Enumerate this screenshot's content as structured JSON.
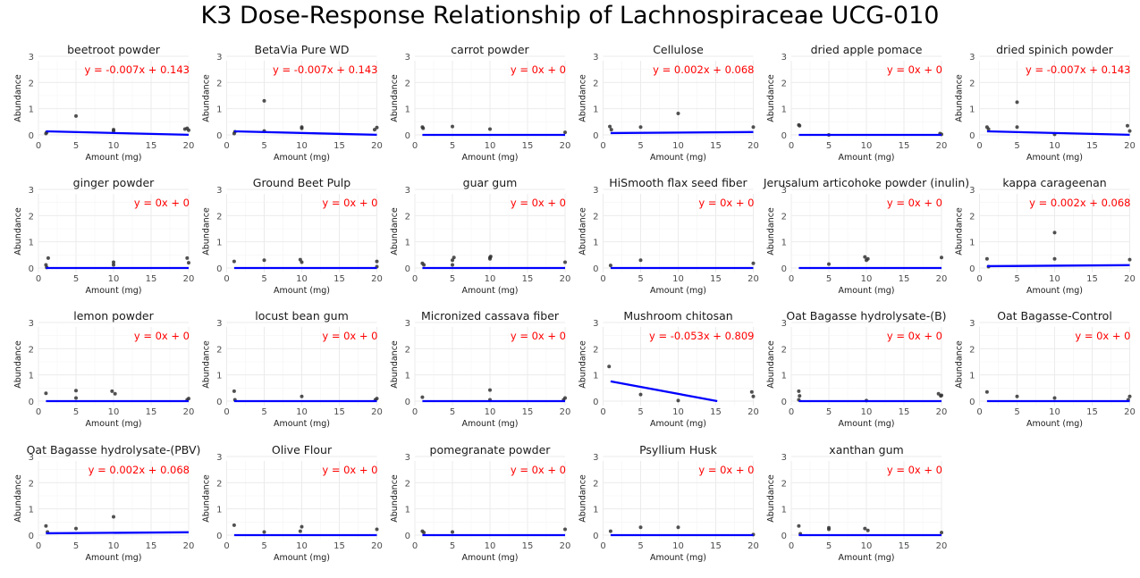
{
  "chart_data": {
    "type": "scatter",
    "title": "K3 Dose-Response Relationship of Lachnospiraceae UCG-010",
    "xlabel": "Amount (mg)",
    "ylabel": "Abundance",
    "xlim": [
      0,
      20
    ],
    "ylim": [
      0,
      3
    ],
    "xticks": [
      0,
      5,
      10,
      15,
      20
    ],
    "yticks": [
      0,
      1,
      2,
      3
    ],
    "grid": true,
    "point_color": "#333333",
    "fit_line_color": "#0000ff",
    "equation_color": "#ff0000",
    "facets": [
      {
        "name": "beetroot powder",
        "equation": "y = -0.007x + 0.143",
        "fit": [
          [
            1,
            0.136
          ],
          [
            20,
            0.003
          ]
        ],
        "points": [
          [
            1,
            0.05
          ],
          [
            1.1,
            0.1
          ],
          [
            5,
            0.72
          ],
          [
            10,
            0.15
          ],
          [
            10,
            0.2
          ],
          [
            19.5,
            0.22
          ],
          [
            19.8,
            0.25
          ],
          [
            20,
            0.18
          ]
        ]
      },
      {
        "name": "BetaVia Pure WD",
        "equation": "y = -0.007x + 0.143",
        "fit": [
          [
            1,
            0.136
          ],
          [
            20,
            0.003
          ]
        ],
        "points": [
          [
            1,
            0.05
          ],
          [
            1.1,
            0.12
          ],
          [
            5,
            1.3
          ],
          [
            5,
            0.15
          ],
          [
            10,
            0.3
          ],
          [
            10,
            0.25
          ],
          [
            19.7,
            0.2
          ],
          [
            20,
            0.28
          ]
        ]
      },
      {
        "name": "carrot powder",
        "equation": "y = 0x + 0",
        "fit": [
          [
            1,
            0
          ],
          [
            20,
            0
          ]
        ],
        "points": [
          [
            1,
            0.3
          ],
          [
            1.1,
            0.25
          ],
          [
            5,
            0.32
          ],
          [
            10,
            0.22
          ],
          [
            20,
            0.1
          ]
        ]
      },
      {
        "name": "Cellulose",
        "equation": "y = 0.002x + 0.068",
        "fit": [
          [
            1,
            0.07
          ],
          [
            20,
            0.108
          ]
        ],
        "points": [
          [
            0.9,
            0.32
          ],
          [
            1.1,
            0.2
          ],
          [
            5,
            0.3
          ],
          [
            10,
            0.82
          ],
          [
            20,
            0.3
          ]
        ]
      },
      {
        "name": "dried apple pomace",
        "equation": "y = 0x + 0",
        "fit": [
          [
            1,
            0
          ],
          [
            20,
            0
          ]
        ],
        "points": [
          [
            1,
            0.38
          ],
          [
            1.1,
            0.35
          ],
          [
            5,
            0
          ],
          [
            19.8,
            0.05
          ],
          [
            20,
            0.02
          ]
        ]
      },
      {
        "name": "dried spinich powder",
        "equation": "y = -0.007x + 0.143",
        "fit": [
          [
            1,
            0.136
          ],
          [
            20,
            0.003
          ]
        ],
        "points": [
          [
            1,
            0.3
          ],
          [
            1.2,
            0.22
          ],
          [
            5,
            1.25
          ],
          [
            5,
            0.3
          ],
          [
            10,
            0.02
          ],
          [
            19.7,
            0.35
          ],
          [
            20,
            0.15
          ]
        ]
      },
      {
        "name": "ginger powder",
        "equation": "y = 0x + 0",
        "fit": [
          [
            1,
            0
          ],
          [
            20,
            0
          ]
        ],
        "points": [
          [
            1,
            0.12
          ],
          [
            1.1,
            0.02
          ],
          [
            1.3,
            0.38
          ],
          [
            10,
            0.22
          ],
          [
            10,
            0.12
          ],
          [
            19.8,
            0.38
          ],
          [
            20,
            0.2
          ]
        ]
      },
      {
        "name": "Ground Beet Pulp",
        "equation": "y = 0x + 0",
        "fit": [
          [
            1,
            0
          ],
          [
            20,
            0
          ]
        ],
        "points": [
          [
            1,
            0.25
          ],
          [
            5,
            0.3
          ],
          [
            9.8,
            0.32
          ],
          [
            10,
            0.22
          ],
          [
            20,
            0.25
          ],
          [
            20,
            0.05
          ]
        ]
      },
      {
        "name": "guar gum",
        "equation": "y = 0x + 0",
        "fit": [
          [
            1,
            0
          ],
          [
            20,
            0
          ]
        ],
        "points": [
          [
            1,
            0.18
          ],
          [
            1.2,
            0.12
          ],
          [
            5,
            0.3
          ],
          [
            5.2,
            0.4
          ],
          [
            5,
            0.12
          ],
          [
            10,
            0.4
          ],
          [
            10,
            0.35
          ],
          [
            10.1,
            0.44
          ],
          [
            20,
            0.22
          ]
        ]
      },
      {
        "name": "HiSmooth flax seed fiber",
        "equation": "y = 0x + 0",
        "fit": [
          [
            1,
            0
          ],
          [
            20,
            0
          ]
        ],
        "points": [
          [
            1,
            0.1
          ],
          [
            5,
            0.3
          ],
          [
            20,
            0.18
          ]
        ]
      },
      {
        "name": "Jerusalum articohoke powder (inulin)",
        "equation": "y = 0x + 0",
        "fit": [
          [
            1,
            0
          ],
          [
            20,
            0
          ]
        ],
        "points": [
          [
            5,
            0.15
          ],
          [
            9.8,
            0.42
          ],
          [
            10,
            0.3
          ],
          [
            10.2,
            0.35
          ],
          [
            20,
            0.4
          ]
        ]
      },
      {
        "name": "kappa carageenan",
        "equation": "y = 0.002x + 0.068",
        "fit": [
          [
            1,
            0.07
          ],
          [
            20,
            0.108
          ]
        ],
        "points": [
          [
            1,
            0.35
          ],
          [
            1.2,
            0.05
          ],
          [
            10,
            1.35
          ],
          [
            10,
            0.35
          ],
          [
            20,
            0.32
          ]
        ]
      },
      {
        "name": "lemon powder",
        "equation": "y = 0x + 0",
        "fit": [
          [
            1,
            0
          ],
          [
            20,
            0
          ]
        ],
        "points": [
          [
            1,
            0.3
          ],
          [
            5,
            0.4
          ],
          [
            5,
            0.12
          ],
          [
            9.8,
            0.38
          ],
          [
            10.2,
            0.28
          ],
          [
            20,
            0.1
          ],
          [
            19.8,
            0.05
          ]
        ]
      },
      {
        "name": "locust bean gum",
        "equation": "y = 0x + 0",
        "fit": [
          [
            1,
            0
          ],
          [
            20,
            0
          ]
        ],
        "points": [
          [
            1,
            0.38
          ],
          [
            1.1,
            0.05
          ],
          [
            10,
            0.18
          ],
          [
            20,
            0.1
          ],
          [
            19.8,
            0.05
          ]
        ]
      },
      {
        "name": "Micronized cassava fiber",
        "equation": "y = 0x + 0",
        "fit": [
          [
            1,
            0
          ],
          [
            20,
            0
          ]
        ],
        "points": [
          [
            1,
            0.15
          ],
          [
            10,
            0.42
          ],
          [
            10,
            0.05
          ],
          [
            20,
            0.12
          ],
          [
            19.8,
            0.05
          ]
        ]
      },
      {
        "name": "Mushroom chitosan",
        "equation": "y = -0.053x + 0.809",
        "fit": [
          [
            1,
            0.756
          ],
          [
            15.2,
            0
          ]
        ],
        "points": [
          [
            0.8,
            1.32
          ],
          [
            5,
            0.25
          ],
          [
            10,
            0.02
          ],
          [
            19.8,
            0.35
          ],
          [
            20,
            0.18
          ]
        ]
      },
      {
        "name": "Oat Bagasse hydrolysate-(B)",
        "equation": "y = 0x + 0",
        "fit": [
          [
            1,
            0
          ],
          [
            20,
            0
          ]
        ],
        "points": [
          [
            1,
            0.38
          ],
          [
            1.1,
            0.2
          ],
          [
            1,
            0.05
          ],
          [
            10,
            0.02
          ],
          [
            19.6,
            0.28
          ],
          [
            20,
            0.22
          ],
          [
            19.9,
            0.2
          ]
        ]
      },
      {
        "name": "Oat Bagasse-Control",
        "equation": "y = 0x + 0",
        "fit": [
          [
            1,
            0
          ],
          [
            20,
            0
          ]
        ],
        "points": [
          [
            1,
            0.35
          ],
          [
            5,
            0.18
          ],
          [
            10,
            0.12
          ],
          [
            20,
            0.18
          ],
          [
            19.8,
            0.05
          ]
        ]
      },
      {
        "name": "Oat Bagasse hydrolysate-(PBV)",
        "equation": "y = 0.002x + 0.068",
        "fit": [
          [
            1,
            0.07
          ],
          [
            20,
            0.108
          ]
        ],
        "points": [
          [
            1,
            0.35
          ],
          [
            1.2,
            0.12
          ],
          [
            5,
            0.25
          ],
          [
            10,
            0.7
          ]
        ]
      },
      {
        "name": "Olive Flour",
        "equation": "y = 0x + 0",
        "fit": [
          [
            1,
            0
          ],
          [
            20,
            0
          ]
        ],
        "points": [
          [
            1,
            0.38
          ],
          [
            5,
            0.12
          ],
          [
            9.8,
            0.15
          ],
          [
            10,
            0.32
          ],
          [
            20,
            0.22
          ]
        ]
      },
      {
        "name": "pomegranate powder",
        "equation": "y = 0x + 0",
        "fit": [
          [
            1,
            0
          ],
          [
            20,
            0
          ]
        ],
        "points": [
          [
            1,
            0.15
          ],
          [
            1.2,
            0.1
          ],
          [
            5,
            0.12
          ],
          [
            20,
            0.22
          ]
        ]
      },
      {
        "name": "Psyllium Husk",
        "equation": "y = 0x + 0",
        "fit": [
          [
            1,
            0
          ],
          [
            20,
            0
          ]
        ],
        "points": [
          [
            1,
            0.15
          ],
          [
            5,
            0.3
          ],
          [
            10,
            0.3
          ],
          [
            20,
            0.02
          ]
        ]
      },
      {
        "name": "xanthan gum",
        "equation": "y = 0x + 0",
        "fit": [
          [
            1,
            0
          ],
          [
            20,
            0
          ]
        ],
        "points": [
          [
            1,
            0.35
          ],
          [
            1.2,
            0.05
          ],
          [
            5,
            0.28
          ],
          [
            5,
            0.22
          ],
          [
            9.8,
            0.25
          ],
          [
            10.2,
            0.18
          ],
          [
            20,
            0.1
          ]
        ]
      }
    ]
  }
}
